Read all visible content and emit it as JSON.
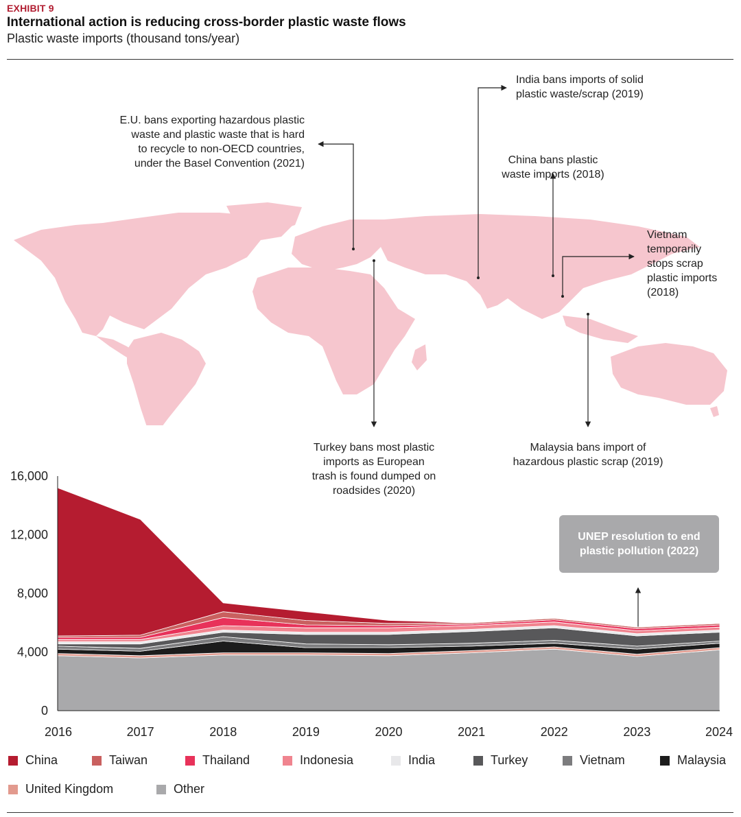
{
  "header": {
    "exhibit": "EXHIBIT 9",
    "title": "International action is reducing cross-border plastic waste flows",
    "subtitle": "Plastic waste imports (thousand tons/year)"
  },
  "annotations": {
    "eu": [
      "E.U. bans exporting hazardous plastic",
      "waste and plastic waste that is hard",
      "to recycle to non-OECD countries,",
      "under the Basel Convention (2021)"
    ],
    "india": [
      "India bans imports of solid",
      "plastic waste/scrap (2019)"
    ],
    "china": [
      "China bans plastic",
      "waste imports (2018)"
    ],
    "vietnam": [
      "Vietnam",
      "temporarily",
      "stops scrap",
      "plastic imports",
      "(2018)"
    ],
    "turkey": [
      "Turkey bans most plastic",
      "imports as European",
      "trash is found dumped on",
      "roadsides (2020)"
    ],
    "malaysia": [
      "Malaysia bans import of",
      "hazardous plastic scrap (2019)"
    ],
    "unep": [
      "UNEP resolution to end",
      "plastic pollution (2022)"
    ]
  },
  "colors": {
    "map": "#f6c6ce",
    "China": "#b51c30",
    "Taiwan": "#c9605f",
    "Thailand": "#e8325a",
    "Indonesia": "#f0848f",
    "India": "#e8e8ea",
    "Turkey": "#58585a",
    "Vietnam": "#7c7c7e",
    "Malaysia": "#1c1c1c",
    "United Kingdom": "#e29a8e",
    "Other": "#a9a9ab"
  },
  "chart_data": {
    "type": "area",
    "stacked": true,
    "categories": [
      "2016",
      "2017",
      "2018",
      "2019",
      "2020",
      "2021",
      "2022",
      "2023",
      "2024"
    ],
    "ylim": [
      0,
      16000
    ],
    "yticks": [
      "0",
      "4,000",
      "8,000",
      "12,000",
      "16,000"
    ],
    "series": [
      {
        "name": "Other",
        "values": [
          3750,
          3600,
          3800,
          3800,
          3750,
          3950,
          4200,
          3700,
          4150
        ]
      },
      {
        "name": "United Kingdom",
        "values": [
          150,
          150,
          150,
          150,
          150,
          150,
          150,
          150,
          150
        ]
      },
      {
        "name": "Malaysia",
        "values": [
          300,
          300,
          800,
          350,
          400,
          300,
          250,
          350,
          300
        ]
      },
      {
        "name": "Vietnam",
        "values": [
          200,
          200,
          300,
          250,
          200,
          200,
          200,
          200,
          150
        ]
      },
      {
        "name": "Turkey",
        "values": [
          150,
          300,
          300,
          650,
          700,
          800,
          850,
          700,
          600
        ]
      },
      {
        "name": "India",
        "values": [
          150,
          150,
          150,
          150,
          150,
          150,
          150,
          150,
          150
        ]
      },
      {
        "name": "Indonesia",
        "values": [
          150,
          150,
          300,
          300,
          300,
          250,
          250,
          200,
          200
        ]
      },
      {
        "name": "Thailand",
        "values": [
          150,
          150,
          550,
          200,
          150,
          100,
          150,
          150,
          150
        ]
      },
      {
        "name": "Taiwan",
        "values": [
          100,
          150,
          400,
          300,
          150,
          100,
          100,
          100,
          100
        ]
      },
      {
        "name": "China",
        "values": [
          10100,
          7900,
          600,
          600,
          200,
          0,
          0,
          0,
          0
        ]
      }
    ],
    "legend_order": [
      "China",
      "Taiwan",
      "Thailand",
      "Indonesia",
      "India",
      "Turkey",
      "Vietnam",
      "Malaysia",
      "United Kingdom",
      "Other"
    ]
  }
}
